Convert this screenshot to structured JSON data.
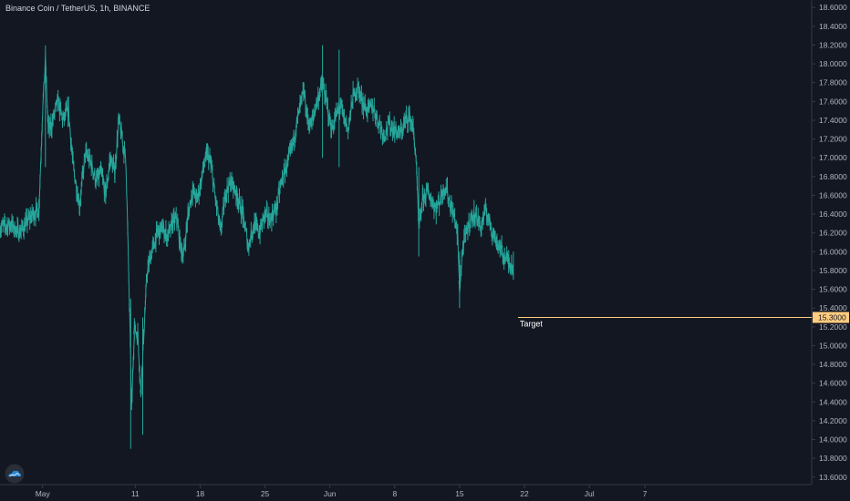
{
  "header": {
    "title": "Binance Coin / TetherUS, 1h, BINANCE"
  },
  "colors": {
    "background": "#131722",
    "candle": "#26a69a",
    "axis_text": "#b2b5be",
    "axis_line": "#363a45",
    "target_line": "#ffcc80"
  },
  "icons": {
    "logo": "tradingview-cloud-icon"
  },
  "chart_data": {
    "type": "line",
    "symbol": "BNBUSDT",
    "interval": "1h",
    "y_axis": {
      "ylim": [
        13.52,
        18.68
      ],
      "ticks": [
        "18.6000",
        "18.4000",
        "18.2000",
        "18.0000",
        "17.8000",
        "17.6000",
        "17.4000",
        "17.2000",
        "17.0000",
        "16.8000",
        "16.6000",
        "16.4000",
        "16.2000",
        "16.0000",
        "15.8000",
        "15.6000",
        "15.4000",
        "15.2000",
        "15.0000",
        "14.8000",
        "14.6000",
        "14.4000",
        "14.2000",
        "14.0000",
        "13.8000",
        "13.6000"
      ],
      "tick_values": [
        18.6,
        18.4,
        18.2,
        18.0,
        17.8,
        17.6,
        17.4,
        17.2,
        17.0,
        16.8,
        16.6,
        16.4,
        16.2,
        16.0,
        15.8,
        15.6,
        15.4,
        15.2,
        15.0,
        14.8,
        14.6,
        14.4,
        14.2,
        14.0,
        13.8,
        13.6
      ]
    },
    "x_axis": {
      "ticks": [
        "May",
        "11",
        "18",
        "25",
        "Jun",
        "8",
        "15",
        "22",
        "Jul",
        "7"
      ],
      "tick_days": [
        8,
        18,
        25,
        32,
        39,
        46,
        53,
        60,
        67,
        73
      ],
      "xlim_days": [
        3.4,
        91.0
      ]
    },
    "series": [
      {
        "kind": "hourly-price",
        "points": [
          [
            3.4,
            16.25
          ],
          [
            4.5,
            16.3
          ],
          [
            5.5,
            16.2
          ],
          [
            6.5,
            16.35
          ],
          [
            7.0,
            16.4
          ],
          [
            7.6,
            16.45
          ],
          [
            8.0,
            17.5
          ],
          [
            8.3,
            18.05
          ],
          [
            8.6,
            17.3
          ],
          [
            9.0,
            17.35
          ],
          [
            9.6,
            17.6
          ],
          [
            10.2,
            17.4
          ],
          [
            10.8,
            17.5
          ],
          [
            11.3,
            16.9
          ],
          [
            12.0,
            16.5
          ],
          [
            12.6,
            17.05
          ],
          [
            13.2,
            16.95
          ],
          [
            13.8,
            16.75
          ],
          [
            14.3,
            16.85
          ],
          [
            14.8,
            16.6
          ],
          [
            15.3,
            17.0
          ],
          [
            15.8,
            16.85
          ],
          [
            16.2,
            17.4
          ],
          [
            16.6,
            17.2
          ],
          [
            17.0,
            16.95
          ],
          [
            17.4,
            15.3
          ],
          [
            17.6,
            14.3
          ],
          [
            17.9,
            15.2
          ],
          [
            18.3,
            15.1
          ],
          [
            18.6,
            14.5
          ],
          [
            18.9,
            15.1
          ],
          [
            19.3,
            15.8
          ],
          [
            19.8,
            16.0
          ],
          [
            20.4,
            16.2
          ],
          [
            21.0,
            16.25
          ],
          [
            21.5,
            16.15
          ],
          [
            22.0,
            16.3
          ],
          [
            22.5,
            16.35
          ],
          [
            22.8,
            16.1
          ],
          [
            23.2,
            15.95
          ],
          [
            23.7,
            16.4
          ],
          [
            24.2,
            16.65
          ],
          [
            24.7,
            16.55
          ],
          [
            25.0,
            16.7
          ],
          [
            25.4,
            16.9
          ],
          [
            25.8,
            17.05
          ],
          [
            26.2,
            16.9
          ],
          [
            26.6,
            16.6
          ],
          [
            27.2,
            16.2
          ],
          [
            27.8,
            16.65
          ],
          [
            28.4,
            16.75
          ],
          [
            29.0,
            16.6
          ],
          [
            29.6,
            16.4
          ],
          [
            30.2,
            16.05
          ],
          [
            30.8,
            16.3
          ],
          [
            31.4,
            16.2
          ],
          [
            32.0,
            16.4
          ],
          [
            32.6,
            16.35
          ],
          [
            33.2,
            16.45
          ],
          [
            33.8,
            16.75
          ],
          [
            34.3,
            16.9
          ],
          [
            34.8,
            17.05
          ],
          [
            35.3,
            17.3
          ],
          [
            35.8,
            17.55
          ],
          [
            36.2,
            17.7
          ],
          [
            36.6,
            17.4
          ],
          [
            37.0,
            17.35
          ],
          [
            37.6,
            17.6
          ],
          [
            38.2,
            17.8
          ],
          [
            38.7,
            17.55
          ],
          [
            39.2,
            17.3
          ],
          [
            39.7,
            17.45
          ],
          [
            40.2,
            17.55
          ],
          [
            40.6,
            17.4
          ],
          [
            41.0,
            17.3
          ],
          [
            41.5,
            17.65
          ],
          [
            42.0,
            17.75
          ],
          [
            42.5,
            17.6
          ],
          [
            43.0,
            17.5
          ],
          [
            43.6,
            17.55
          ],
          [
            44.2,
            17.4
          ],
          [
            44.8,
            17.25
          ],
          [
            45.4,
            17.35
          ],
          [
            46.0,
            17.3
          ],
          [
            46.6,
            17.25
          ],
          [
            47.2,
            17.4
          ],
          [
            47.6,
            17.45
          ],
          [
            48.0,
            17.3
          ],
          [
            48.3,
            17.0
          ],
          [
            48.6,
            16.2
          ],
          [
            49.0,
            16.55
          ],
          [
            49.5,
            16.65
          ],
          [
            50.0,
            16.55
          ],
          [
            50.5,
            16.45
          ],
          [
            51.0,
            16.6
          ],
          [
            51.5,
            16.7
          ],
          [
            52.0,
            16.5
          ],
          [
            52.5,
            16.35
          ],
          [
            52.8,
            16.15
          ],
          [
            53.0,
            15.6
          ],
          [
            53.3,
            16.0
          ],
          [
            53.7,
            16.2
          ],
          [
            54.2,
            16.35
          ],
          [
            54.7,
            16.4
          ],
          [
            55.3,
            16.25
          ],
          [
            55.8,
            16.45
          ],
          [
            56.3,
            16.3
          ],
          [
            56.8,
            16.15
          ],
          [
            57.3,
            16.05
          ],
          [
            57.8,
            15.95
          ],
          [
            58.3,
            15.9
          ],
          [
            58.8,
            15.85
          ]
        ]
      }
    ],
    "horizontal_lines": [
      {
        "label": "Target",
        "value": 15.3,
        "value_label": "15.3000",
        "start_day": 59.3
      }
    ]
  }
}
